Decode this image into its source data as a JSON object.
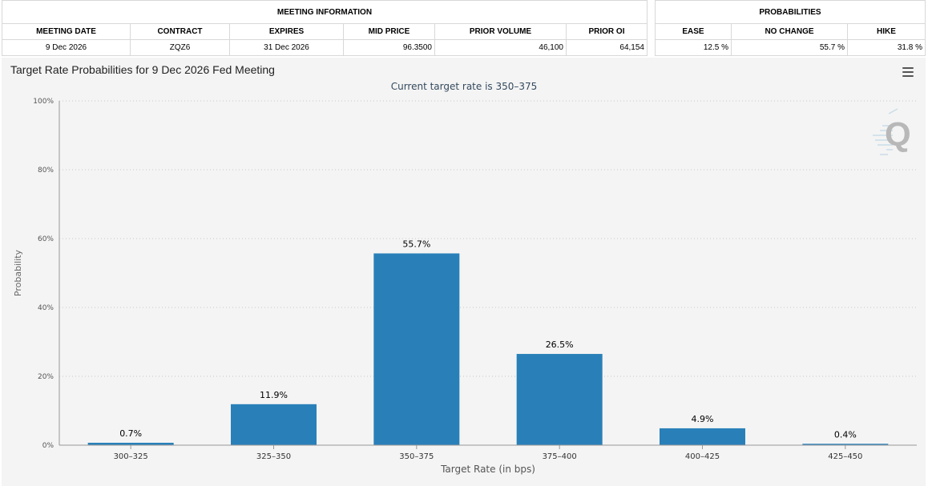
{
  "meeting_info": {
    "header": "MEETING INFORMATION",
    "columns": [
      "MEETING DATE",
      "CONTRACT",
      "EXPIRES",
      "MID PRICE",
      "PRIOR VOLUME",
      "PRIOR OI"
    ],
    "row": {
      "meeting_date": "9 Dec 2026",
      "contract": "ZQZ6",
      "expires": "31 Dec 2026",
      "mid_price": "96.3500",
      "prior_volume": "46,100",
      "prior_oi": "64,154"
    }
  },
  "probabilities": {
    "header": "PROBABILITIES",
    "columns": [
      "EASE",
      "NO CHANGE",
      "HIKE"
    ],
    "row": {
      "ease": "12.5 %",
      "no_change": "55.7 %",
      "hike": "31.8 %"
    }
  },
  "chart": {
    "title": "Target Rate Probabilities for 9 Dec 2026 Fed Meeting",
    "menu_icon": "hamburger-menu-icon",
    "watermark_icon": "q-logo-icon"
  },
  "chart_data": {
    "type": "bar",
    "title": "Target Rate Probabilities for 9 Dec 2026 Fed Meeting",
    "subtitle": "Current target rate is 350–375",
    "xlabel": "Target Rate (in bps)",
    "ylabel": "Probability",
    "categories": [
      "300–325",
      "325–350",
      "350–375",
      "375–400",
      "400–425",
      "425–450"
    ],
    "values": [
      0.7,
      11.9,
      55.7,
      26.5,
      4.9,
      0.4
    ],
    "data_labels": [
      "0.7%",
      "11.9%",
      "55.7%",
      "26.5%",
      "4.9%",
      "0.4%"
    ],
    "yticks": [
      0,
      20,
      40,
      60,
      80,
      100
    ],
    "ytick_labels": [
      "0%",
      "20%",
      "40%",
      "60%",
      "80%",
      "100%"
    ],
    "ylim": [
      0,
      100
    ],
    "grid": true,
    "bar_color": "#2980b9",
    "subtitle_color": "#34495e"
  }
}
